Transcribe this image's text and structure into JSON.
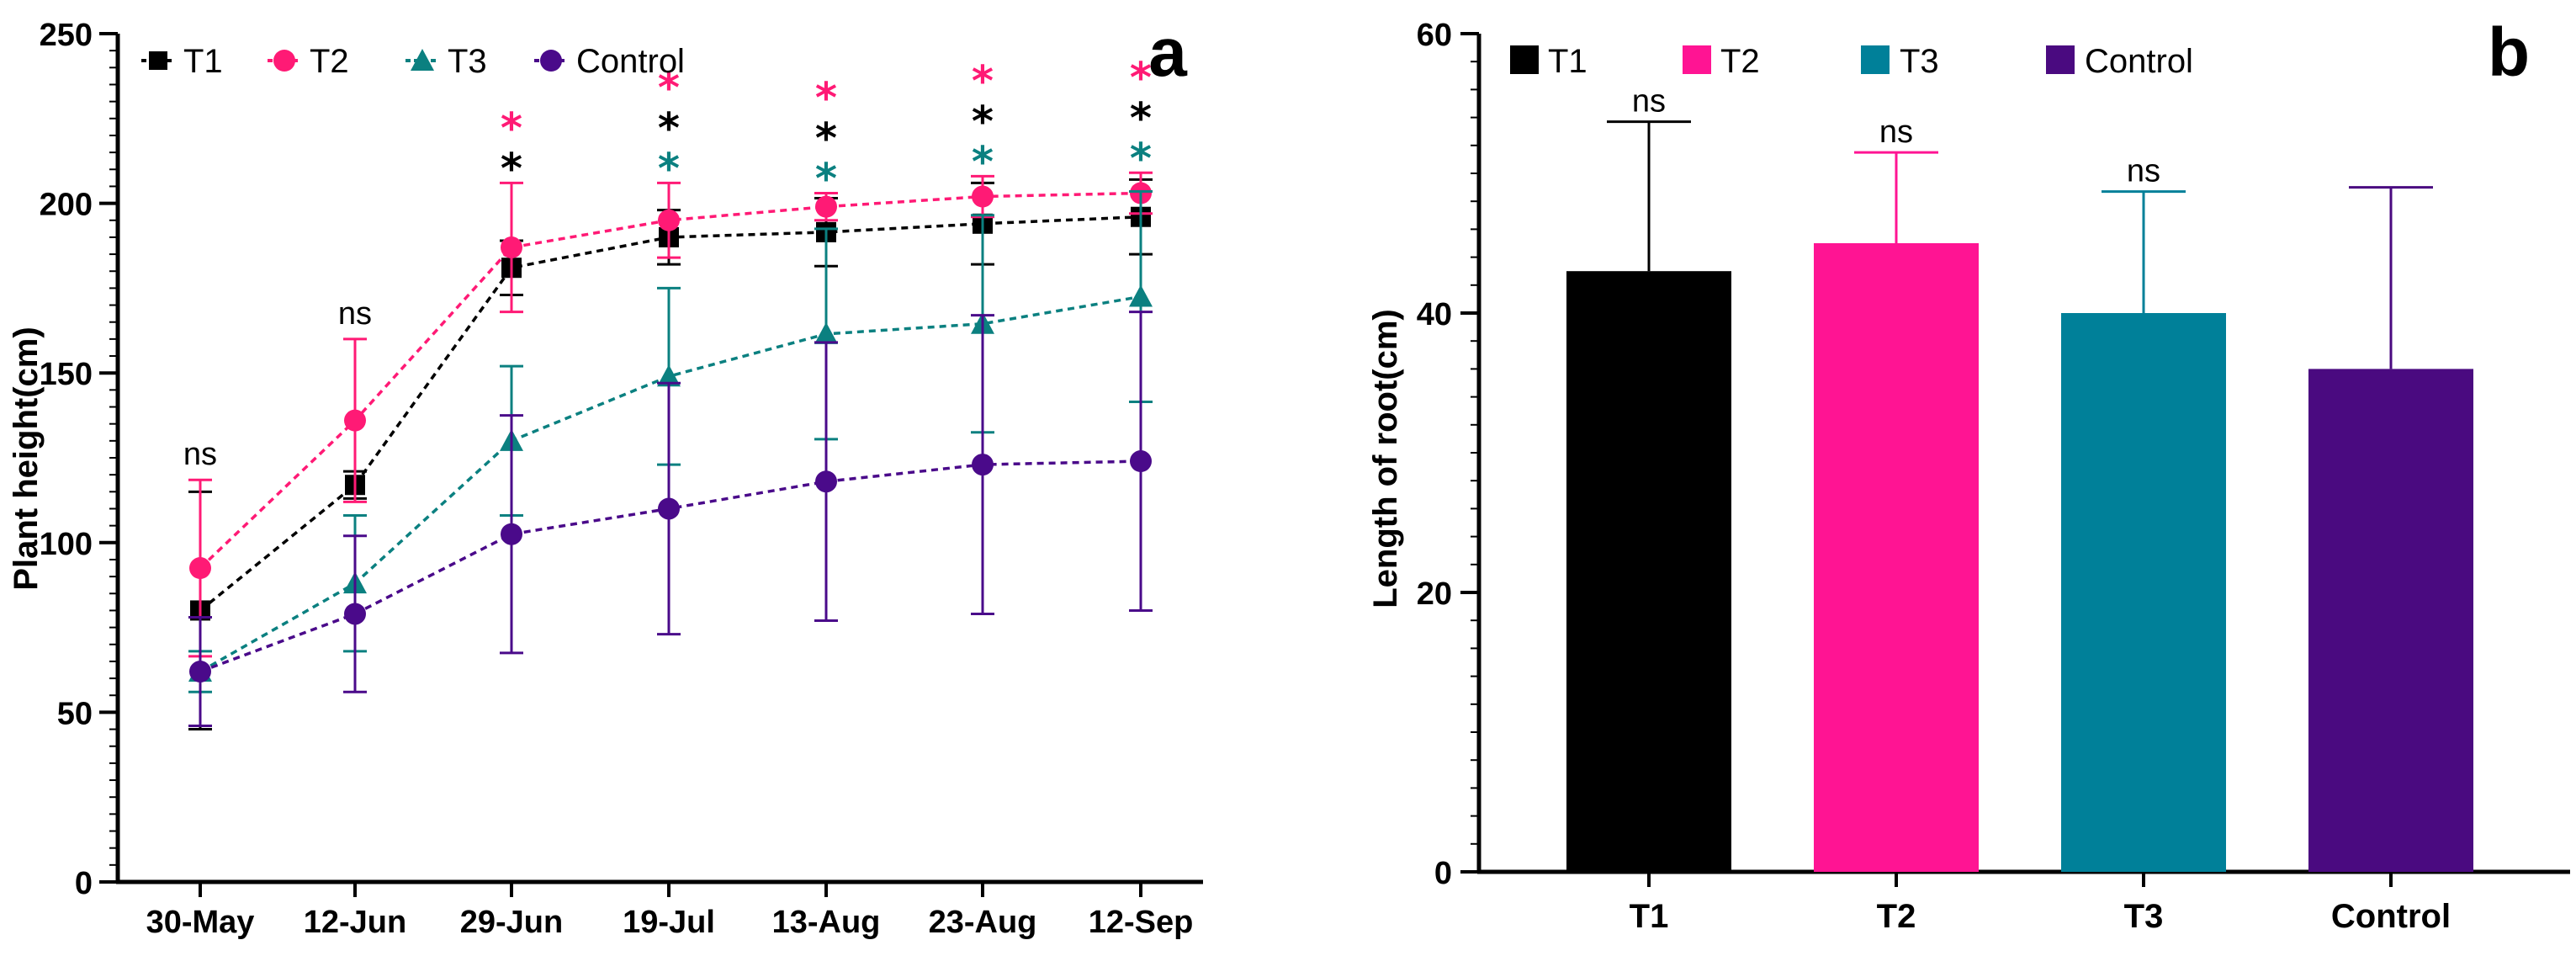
{
  "chart_data": [
    {
      "panel_letter": "a",
      "type": "line",
      "title": "",
      "xlabel": "",
      "ylabel": "Plant height(cm)",
      "ylim": [
        0,
        250
      ],
      "yticks": [
        0,
        50,
        100,
        150,
        200,
        250
      ],
      "categories": [
        "30-May",
        "12-Jun",
        "29-Jun",
        "19-Jul",
        "13-Aug",
        "23-Aug",
        "12-Sep"
      ],
      "legend_position": "top-left",
      "series": [
        {
          "name": "T1",
          "color": "#000000",
          "marker": "square",
          "values": [
            80,
            117,
            181,
            190,
            191.5,
            194,
            196
          ],
          "errors": [
            35,
            4,
            8,
            8,
            10,
            12,
            11
          ]
        },
        {
          "name": "T2",
          "color": "#ff1a75",
          "marker": "circle",
          "values": [
            92.5,
            136,
            187,
            195,
            199,
            202,
            203
          ],
          "errors": [
            26,
            24,
            19,
            11,
            4,
            6,
            6
          ]
        },
        {
          "name": "T3",
          "color": "#0b8080",
          "marker": "triangle",
          "values": [
            62,
            88,
            130,
            149,
            161.5,
            164.5,
            172.5
          ],
          "errors": [
            6,
            20,
            22,
            26,
            31,
            32,
            31
          ]
        },
        {
          "name": "Control",
          "color": "#4a0a8a",
          "marker": "circle",
          "values": [
            62,
            79,
            102.5,
            110,
            118,
            123,
            124
          ],
          "errors": [
            16,
            23,
            35,
            37,
            41,
            44,
            44
          ]
        }
      ],
      "annotations": [
        {
          "category": "30-May",
          "labels": [
            {
              "text": "ns",
              "series": ""
            }
          ]
        },
        {
          "category": "12-Jun",
          "labels": [
            {
              "text": "ns",
              "series": ""
            }
          ]
        },
        {
          "category": "29-Jun",
          "labels": [
            {
              "text": "*",
              "series": "T2"
            },
            {
              "text": "*",
              "series": "T1"
            }
          ]
        },
        {
          "category": "19-Jul",
          "labels": [
            {
              "text": "*",
              "series": "T2"
            },
            {
              "text": "*",
              "series": "T1"
            },
            {
              "text": "*",
              "series": "T3"
            }
          ]
        },
        {
          "category": "13-Aug",
          "labels": [
            {
              "text": "*",
              "series": "T2"
            },
            {
              "text": "*",
              "series": "T1"
            },
            {
              "text": "*",
              "series": "T3"
            }
          ]
        },
        {
          "category": "23-Aug",
          "labels": [
            {
              "text": "*",
              "series": "T2"
            },
            {
              "text": "*",
              "series": "T1"
            },
            {
              "text": "*",
              "series": "T3"
            }
          ]
        },
        {
          "category": "12-Sep",
          "labels": [
            {
              "text": "*",
              "series": "T2"
            },
            {
              "text": "*",
              "series": "T1"
            },
            {
              "text": "*",
              "series": "T3"
            }
          ]
        }
      ]
    },
    {
      "panel_letter": "b",
      "type": "bar",
      "title": "",
      "xlabel": "",
      "ylabel": "Length of root(cm)",
      "ylim": [
        0,
        60
      ],
      "yticks": [
        0,
        20,
        40,
        60
      ],
      "categories": [
        "T1",
        "T2",
        "T3",
        "Control"
      ],
      "values": [
        43,
        45,
        40,
        36
      ],
      "errors": [
        10.7,
        6.5,
        8.7,
        13
      ],
      "colors": [
        "#000000",
        "#ff1493",
        "#008099",
        "#4a0a80"
      ],
      "bar_labels": [
        "ns",
        "ns",
        "ns",
        ""
      ],
      "legend_position": "top-left",
      "legend": [
        "T1",
        "T2",
        "T3",
        "Control"
      ]
    }
  ]
}
